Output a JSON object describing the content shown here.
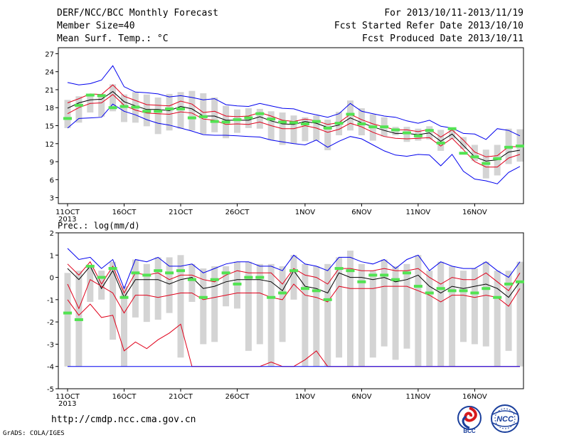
{
  "header": {
    "title": "DERF/NCC/BCC Monthly Forecast",
    "member_size": "Member Size=40",
    "variable": "Mean Surf. Temp.: °C",
    "period": "For 2013/10/11-2013/11/19",
    "fcst_started": "Fcst Started Refer Date 2013/10/10",
    "fcst_produced": "Fcst Produced Date 2013/10/11"
  },
  "footer": {
    "url": "http://cmdp.ncc.cma.gov.cn",
    "grads_credit": "GrADS: COLA/IGES",
    "logo_bcc": "BCC",
    "logo_ncc": "NCC"
  },
  "colors": {
    "box": "#d4d4d4",
    "mean": "#000000",
    "ens_band": "#e0001a",
    "extreme": "#0000ee",
    "obs": "#52e352",
    "frame": "#000000"
  },
  "chart_data": [
    {
      "type": "line",
      "title": "Mean Surf. Temp.: °C",
      "x_tick_labels": [
        "11OCT",
        "16OCT",
        "21OCT",
        "26OCT",
        "1NOV",
        "6NOV",
        "11NOV",
        "16NOV"
      ],
      "x_tick_day_index": [
        0,
        5,
        10,
        15,
        21,
        26,
        31,
        36
      ],
      "x_year_label": "2013",
      "y_ticks": [
        3,
        6,
        9,
        12,
        15,
        18,
        21,
        24,
        27
      ],
      "ylim": [
        2,
        28
      ],
      "series": [
        {
          "name": "max",
          "color": "#0000ee",
          "values": [
            22.2,
            21.8,
            22.0,
            22.6,
            25.0,
            21.5,
            20.6,
            20.5,
            20.3,
            19.8,
            20.0,
            19.7,
            19.3,
            19.5,
            18.5,
            18.3,
            18.2,
            18.7,
            18.3,
            17.9,
            17.8,
            17.2,
            16.8,
            16.4,
            17.0,
            18.7,
            17.4,
            17.0,
            16.6,
            16.4,
            15.8,
            15.4,
            15.9,
            14.9,
            14.6,
            13.7,
            13.6,
            12.7,
            14.5,
            14.2,
            13.3
          ]
        },
        {
          "name": "upper",
          "color": "#e0001a",
          "values": [
            18.8,
            19.5,
            20.3,
            20.2,
            21.8,
            19.9,
            19.2,
            18.5,
            18.4,
            18.3,
            19.1,
            18.6,
            17.2,
            17.4,
            16.6,
            16.5,
            16.6,
            17.2,
            16.6,
            15.9,
            15.7,
            16.1,
            15.8,
            15.2,
            15.5,
            16.9,
            16.0,
            15.3,
            14.8,
            14.3,
            14.3,
            14.0,
            14.4,
            13.1,
            14.3,
            12.6,
            10.6,
            9.8,
            10.0,
            11.5,
            11.5
          ]
        },
        {
          "name": "mean",
          "color": "#000000",
          "values": [
            17.9,
            18.8,
            19.3,
            19.4,
            20.7,
            19.0,
            18.3,
            17.7,
            17.7,
            17.5,
            18.2,
            17.8,
            16.6,
            16.6,
            15.9,
            15.9,
            15.9,
            16.5,
            15.8,
            15.3,
            15.2,
            15.7,
            15.4,
            14.7,
            15.1,
            16.3,
            15.5,
            14.8,
            14.2,
            13.7,
            13.7,
            13.5,
            13.8,
            12.4,
            13.6,
            11.7,
            9.8,
            9.1,
            9.3,
            10.6,
            10.9
          ]
        },
        {
          "name": "lower",
          "color": "#e0001a",
          "values": [
            17.0,
            18.0,
            18.7,
            18.8,
            20.2,
            18.4,
            17.6,
            17.1,
            17.0,
            16.9,
            17.3,
            17.1,
            16.1,
            15.9,
            15.2,
            15.3,
            15.2,
            15.6,
            15.0,
            14.5,
            14.5,
            15.0,
            14.6,
            13.9,
            14.4,
            15.4,
            14.8,
            13.9,
            13.2,
            12.9,
            12.8,
            12.9,
            13.0,
            11.6,
            12.9,
            11.0,
            9.0,
            8.1,
            8.1,
            9.6,
            10.2
          ]
        },
        {
          "name": "min",
          "color": "#0000ee",
          "values": [
            14.6,
            16.2,
            16.3,
            16.4,
            18.6,
            17.4,
            16.8,
            16.0,
            15.4,
            15.1,
            14.6,
            14.1,
            13.5,
            13.4,
            13.4,
            13.3,
            13.2,
            13.1,
            12.6,
            12.3,
            12.0,
            11.8,
            12.6,
            11.4,
            12.4,
            13.2,
            12.8,
            11.8,
            10.8,
            10.1,
            9.9,
            10.2,
            10.1,
            8.3,
            10.2,
            7.4,
            6.1,
            5.8,
            5.3,
            7.2,
            8.2
          ]
        }
      ],
      "boxes": {
        "low": [
          14.6,
          15.5,
          17.2,
          16.5,
          17.4,
          15.6,
          15.5,
          14.9,
          13.6,
          14.2,
          14.5,
          14.2,
          13.6,
          13.9,
          12.9,
          13.8,
          14.6,
          14.5,
          12.6,
          11.8,
          12.0,
          12.4,
          12.5,
          10.9,
          13.4,
          14.2,
          13.4,
          12.5,
          13.2,
          13.4,
          12.3,
          12.5,
          12.7,
          10.8,
          12.8,
          11.1,
          9.1,
          6.2,
          6.7,
          8.6,
          9.0
        ],
        "high": [
          19.3,
          19.9,
          20.2,
          20.3,
          21.9,
          20.2,
          20.6,
          20.2,
          19.7,
          20.3,
          20.6,
          20.8,
          20.4,
          19.7,
          18.3,
          17.7,
          17.9,
          17.8,
          17.4,
          17.2,
          16.7,
          16.4,
          16.7,
          16.0,
          17.3,
          19.2,
          17.9,
          16.9,
          16.4,
          14.8,
          14.8,
          14.5,
          14.9,
          14.3,
          14.3,
          13.1,
          11.8,
          11.0,
          11.8,
          14.5,
          14.4
        ]
      },
      "observed": [
        16.2,
        18.4,
        20.1,
        20.0,
        18.0,
        18.2,
        18.1,
        17.4,
        17.4,
        17.8,
        17.8,
        16.3,
        16.5,
        15.7,
        15.6,
        16.0,
        16.3,
        17.0,
        16.1,
        15.6,
        15.5,
        15.3,
        15.7,
        14.6,
        15.4,
        16.9,
        15.3,
        14.8,
        14.8,
        14.3,
        13.8,
        13.3,
        14.2,
        12.1,
        14.5,
        10.4,
        9.8,
        8.7,
        9.5,
        11.4,
        11.6
      ]
    },
    {
      "type": "line",
      "title": "Prec.: log(mm/d)",
      "x_tick_labels": [
        "11OCT",
        "16OCT",
        "21OCT",
        "26OCT",
        "1NOV",
        "6NOV",
        "11NOV",
        "16NOV"
      ],
      "x_tick_day_index": [
        0,
        5,
        10,
        15,
        21,
        26,
        31,
        36
      ],
      "x_year_label": "2013",
      "y_ticks": [
        -5,
        -4,
        -3,
        -2,
        -1,
        0,
        1,
        2
      ],
      "ylim": [
        -5,
        2
      ],
      "series": [
        {
          "name": "max",
          "color": "#0000ee",
          "values": [
            1.3,
            0.8,
            0.9,
            0.4,
            0.8,
            -0.5,
            0.8,
            0.7,
            0.9,
            0.5,
            0.5,
            0.6,
            0.2,
            0.4,
            0.6,
            0.7,
            0.7,
            0.5,
            0.5,
            0.3,
            1.0,
            0.6,
            0.5,
            0.3,
            0.9,
            0.9,
            0.7,
            0.6,
            0.8,
            0.4,
            0.8,
            1.0,
            0.3,
            0.7,
            0.5,
            0.4,
            0.4,
            0.7,
            0.3,
            0.0,
            0.7
          ]
        },
        {
          "name": "upper",
          "color": "#e0001a",
          "values": [
            0.6,
            0.1,
            0.7,
            -0.3,
            0.5,
            -0.7,
            0.2,
            0.1,
            0.2,
            -0.1,
            0.1,
            0.1,
            -0.1,
            -0.2,
            0.1,
            0.3,
            0.2,
            0.2,
            0.2,
            -0.3,
            0.4,
            0.1,
            0.0,
            -0.3,
            0.4,
            0.4,
            0.3,
            0.3,
            0.4,
            0.3,
            0.3,
            0.4,
            0.0,
            -0.3,
            0.0,
            -0.1,
            -0.1,
            0.2,
            -0.2,
            -0.6,
            0.2
          ]
        },
        {
          "name": "mean",
          "color": "#000000",
          "values": [
            0.4,
            -0.1,
            0.5,
            -0.5,
            0.3,
            -0.9,
            -0.1,
            -0.1,
            -0.1,
            -0.3,
            -0.1,
            0.0,
            -0.5,
            -0.4,
            -0.2,
            -0.1,
            -0.1,
            -0.1,
            -0.2,
            -0.6,
            0.3,
            -0.4,
            -0.5,
            -0.7,
            0.2,
            0.0,
            0.0,
            -0.1,
            0.0,
            -0.2,
            -0.1,
            0.1,
            -0.4,
            -0.7,
            -0.4,
            -0.5,
            -0.4,
            -0.3,
            -0.5,
            -0.9,
            -0.2
          ]
        },
        {
          "name": "lower",
          "color": "#e0001a",
          "values": [
            -0.3,
            -1.4,
            -0.1,
            -0.4,
            -0.7,
            -1.6,
            -0.8,
            -0.8,
            -0.9,
            -0.8,
            -0.7,
            -0.7,
            -1.0,
            -0.9,
            -0.8,
            -0.7,
            -0.7,
            -0.7,
            -0.9,
            -1.0,
            -0.3,
            -0.8,
            -0.9,
            -1.1,
            -0.4,
            -0.5,
            -0.5,
            -0.5,
            -0.4,
            -0.4,
            -0.4,
            -0.6,
            -0.8,
            -1.1,
            -0.8,
            -0.8,
            -0.9,
            -0.8,
            -0.9,
            -1.3,
            -0.5
          ]
        },
        {
          "name": "lower_tail",
          "color": "#e0001a",
          "values": [
            -1.0,
            -1.7,
            -1.2,
            -1.8,
            -1.7,
            -3.3,
            -2.9,
            -3.2,
            -2.8,
            -2.5,
            -2.1,
            -4.0,
            -4.0,
            -4.0,
            -4.0,
            -4.0,
            -4.0,
            -4.0,
            -3.8,
            -4.0,
            -4.0,
            -3.7,
            -3.3,
            -4.0,
            -4.0,
            -4.0,
            -4.0,
            -4.0,
            -4.0,
            -4.0,
            -4.0,
            -4.0,
            -4.0,
            -4.0,
            -4.0,
            -4.0,
            -4.0,
            -4.0,
            -4.0,
            -4.0,
            -4.0
          ]
        },
        {
          "name": "min",
          "color": "#0000ee",
          "values": [
            -4,
            -4,
            -4,
            -4,
            -4,
            -4,
            -4,
            -4,
            -4,
            -4,
            -4,
            -4,
            -4,
            -4,
            -4,
            -4,
            -4,
            -4,
            -4,
            -4,
            -4,
            -4,
            -4,
            -4,
            -4,
            -4,
            -4,
            -4,
            -4,
            -4,
            -4,
            -4,
            -4,
            -4,
            -4,
            -4,
            -4,
            -4,
            -4,
            -4,
            -4
          ]
        }
      ],
      "boxes": {
        "low": [
          -4,
          -4,
          -1.1,
          -1.0,
          -2.8,
          -4,
          -1.8,
          -2.0,
          -1.9,
          -1.6,
          -3.6,
          -1.1,
          -3.0,
          -2.9,
          -1.3,
          -1.4,
          -3.3,
          -3.0,
          -4,
          -2.9,
          -1.0,
          -4,
          -4,
          -4,
          -3.6,
          -4,
          -4,
          -3.6,
          -3.1,
          -3.7,
          -3.2,
          -4,
          -4,
          -4,
          -4,
          -2.9,
          -3.0,
          -3.1,
          -4,
          -3.3,
          -4
        ],
        "high": [
          0.2,
          0.3,
          0.5,
          0.3,
          0.7,
          -0.4,
          0.8,
          0.6,
          0.9,
          0.9,
          1.0,
          0.6,
          0.4,
          0.5,
          0.5,
          0.7,
          0.7,
          0.6,
          0.6,
          0.5,
          1.0,
          0.6,
          0.5,
          0.6,
          0.9,
          1.2,
          0.6,
          0.3,
          0.8,
          0.5,
          0.6,
          1.0,
          0.3,
          0.7,
          0.5,
          0.3,
          0.4,
          0.7,
          0.3,
          0.3,
          0.7
        ]
      },
      "observed": [
        -1.6,
        -1.9,
        0.5,
        0.0,
        0.4,
        -0.9,
        0.2,
        0.1,
        0.3,
        0.2,
        0.3,
        -0.1,
        -0.9,
        -0.1,
        0.2,
        -0.3,
        0.0,
        0.0,
        -0.9,
        -0.7,
        0.3,
        -0.5,
        -0.6,
        -1.0,
        0.4,
        0.3,
        -0.2,
        0.1,
        0.1,
        -0.1,
        0.2,
        -0.4,
        -0.7,
        -0.5,
        -0.6,
        -0.6,
        -0.7,
        -0.5,
        -0.9,
        -0.3,
        -0.2
      ]
    }
  ]
}
